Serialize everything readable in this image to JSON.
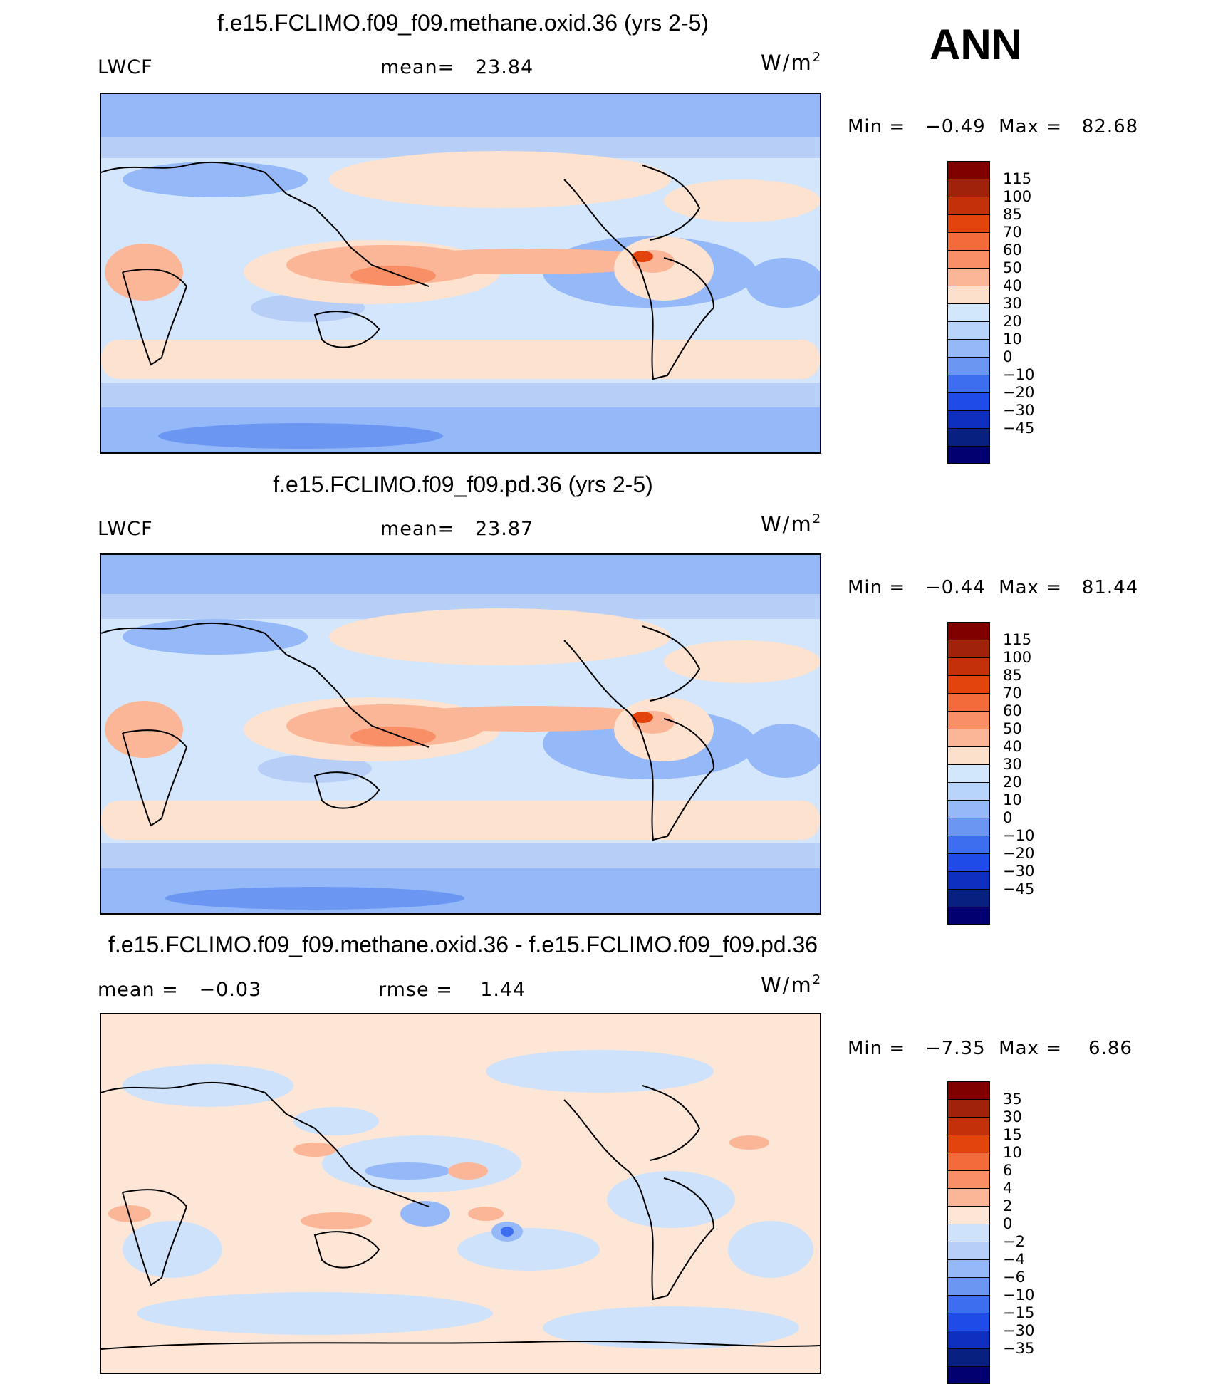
{
  "season": "ANN",
  "panels": [
    {
      "title": "f.e15.FCLIMO.f09_f09.methane.oxid.36 (yrs 2-5)",
      "left_label": "LWCF",
      "center_label": "mean=   23.84",
      "units": "W/m",
      "units_sup": "2",
      "minmax": "Min =   −0.49  Max =   82.68",
      "colorbar": {
        "colors": [
          "#800000",
          "#a0220a",
          "#c3300a",
          "#e3440e",
          "#f36b3b",
          "#f98f67",
          "#fbb597",
          "#fde0cc",
          "#d3e7fc",
          "#b9d4fb",
          "#94b8f8",
          "#6b97f3",
          "#3d6ef0",
          "#1f4be9",
          "#0f2fc0",
          "#082080",
          "#020070"
        ],
        "labels": [
          "115",
          "100",
          "85",
          "70",
          "60",
          "50",
          "40",
          "30",
          "20",
          "10",
          "0",
          "−10",
          "−20",
          "−30",
          "−45"
        ]
      },
      "regions": [
        {
          "color": "#b7cff7",
          "lat": [
            -70,
            90
          ]
        },
        {
          "color": "#d3e6fc",
          "lat": [
            -55,
            50
          ]
        },
        {
          "color": "#fde2cf",
          "lat": [
            -52,
            -40
          ]
        },
        {
          "color": "#fde2cf",
          "lat": [
            22,
            42
          ]
        }
      ]
    },
    {
      "title": "f.e15.FCLIMO.f09_f09.pd.36 (yrs 2-5)",
      "left_label": "LWCF",
      "center_label": "mean=   23.87",
      "units": "W/m",
      "units_sup": "2",
      "minmax": "Min =   −0.44  Max =   81.44",
      "colorbar": {
        "colors": [
          "#800000",
          "#a0220a",
          "#c3300a",
          "#e3440e",
          "#f36b3b",
          "#f98f67",
          "#fbb597",
          "#fde0cc",
          "#d3e7fc",
          "#b9d4fb",
          "#94b8f8",
          "#6b97f3",
          "#3d6ef0",
          "#1f4be9",
          "#0f2fc0",
          "#082080",
          "#020070"
        ],
        "labels": [
          "115",
          "100",
          "85",
          "70",
          "60",
          "50",
          "40",
          "30",
          "20",
          "10",
          "0",
          "−10",
          "−20",
          "−30",
          "−45"
        ]
      }
    },
    {
      "title": "f.e15.FCLIMO.f09_f09.methane.oxid.36 - f.e15.FCLIMO.f09_f09.pd.36",
      "left_label": "mean =   −0.03",
      "center_label": "rmse =    1.44",
      "units": "W/m",
      "units_sup": "2",
      "minmax": "Min =   −7.35  Max =    6.86",
      "colorbar": {
        "colors": [
          "#800000",
          "#a0220a",
          "#c3300a",
          "#e3440e",
          "#f36b3b",
          "#f98f67",
          "#fbb597",
          "#fde6d6",
          "#cfe2fb",
          "#b6cef8",
          "#94b8f8",
          "#6b97f3",
          "#3d6ef0",
          "#1f4be9",
          "#0f2fc0",
          "#082080",
          "#020070"
        ],
        "labels": [
          "35",
          "30",
          "15",
          "10",
          "6",
          "4",
          "2",
          "0",
          "−2",
          "−4",
          "−6",
          "−10",
          "−15",
          "−30",
          "−35"
        ]
      }
    }
  ]
}
